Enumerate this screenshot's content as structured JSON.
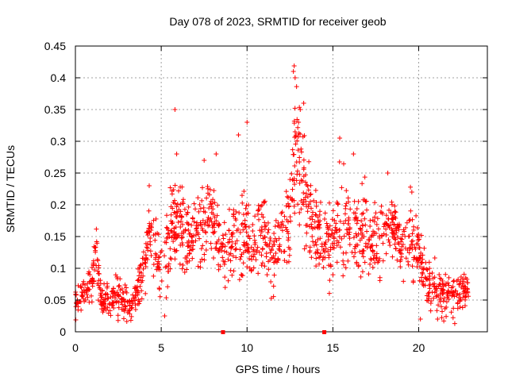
{
  "chart_data": {
    "type": "scatter",
    "title": "Day 078 of 2023, SRMTID for receiver geob",
    "xlabel": "GPS time / hours",
    "ylabel": "SRMTID / TECUs",
    "xlim": [
      0,
      24
    ],
    "ylim": [
      0,
      0.45
    ],
    "x_ticks": [
      0,
      5,
      10,
      15,
      20
    ],
    "x_tick_labels": [
      "0",
      "5",
      "10",
      "15",
      "20"
    ],
    "y_ticks": [
      0,
      0.05,
      0.1,
      0.15,
      0.2,
      0.25,
      0.3,
      0.35,
      0.4,
      0.45
    ],
    "y_tick_labels": [
      "0",
      "0.05",
      "0.1",
      "0.15",
      "0.2",
      "0.25",
      "0.3",
      "0.35",
      "0.4",
      "0.45"
    ],
    "grid": true,
    "marker": "plus",
    "color": "#ff0000",
    "data_gap_markers_x": [
      8.6,
      14.5
    ],
    "envelope": [
      [
        0.0,
        0.05,
        0.02
      ],
      [
        0.5,
        0.06,
        0.02
      ],
      [
        1.0,
        0.08,
        0.03
      ],
      [
        1.2,
        0.12,
        0.04
      ],
      [
        1.5,
        0.05,
        0.02
      ],
      [
        2.0,
        0.05,
        0.02
      ],
      [
        2.5,
        0.06,
        0.03
      ],
      [
        3.0,
        0.04,
        0.02
      ],
      [
        3.5,
        0.06,
        0.025
      ],
      [
        4.0,
        0.1,
        0.03
      ],
      [
        4.3,
        0.16,
        0.04
      ],
      [
        4.7,
        0.13,
        0.04
      ],
      [
        5.0,
        0.1,
        0.04
      ],
      [
        5.5,
        0.15,
        0.045
      ],
      [
        6.0,
        0.18,
        0.045
      ],
      [
        6.5,
        0.14,
        0.04
      ],
      [
        7.0,
        0.17,
        0.04
      ],
      [
        7.5,
        0.16,
        0.05
      ],
      [
        8.0,
        0.18,
        0.05
      ],
      [
        8.5,
        0.12,
        0.04
      ],
      [
        9.0,
        0.14,
        0.05
      ],
      [
        9.5,
        0.15,
        0.05
      ],
      [
        10.0,
        0.17,
        0.06
      ],
      [
        10.5,
        0.12,
        0.05
      ],
      [
        11.0,
        0.15,
        0.05
      ],
      [
        11.5,
        0.12,
        0.04
      ],
      [
        12.0,
        0.15,
        0.04
      ],
      [
        12.5,
        0.18,
        0.05
      ],
      [
        12.8,
        0.28,
        0.1
      ],
      [
        13.2,
        0.22,
        0.08
      ],
      [
        13.6,
        0.2,
        0.06
      ],
      [
        14.0,
        0.16,
        0.05
      ],
      [
        14.5,
        0.14,
        0.04
      ],
      [
        15.0,
        0.15,
        0.05
      ],
      [
        15.5,
        0.17,
        0.06
      ],
      [
        16.0,
        0.18,
        0.05
      ],
      [
        16.5,
        0.15,
        0.05
      ],
      [
        17.0,
        0.16,
        0.05
      ],
      [
        17.5,
        0.14,
        0.05
      ],
      [
        18.0,
        0.15,
        0.05
      ],
      [
        18.5,
        0.16,
        0.05
      ],
      [
        19.0,
        0.13,
        0.04
      ],
      [
        19.5,
        0.15,
        0.05
      ],
      [
        20.0,
        0.12,
        0.04
      ],
      [
        20.5,
        0.08,
        0.03
      ],
      [
        21.0,
        0.07,
        0.025
      ],
      [
        21.5,
        0.06,
        0.025
      ],
      [
        22.0,
        0.06,
        0.02
      ],
      [
        22.5,
        0.06,
        0.02
      ],
      [
        22.9,
        0.07,
        0.02
      ]
    ],
    "outliers": [
      [
        5.8,
        0.35
      ],
      [
        12.7,
        0.41
      ],
      [
        12.8,
        0.4
      ],
      [
        13.3,
        0.36
      ],
      [
        13.1,
        0.35
      ],
      [
        13.0,
        0.33
      ],
      [
        10.0,
        0.33
      ],
      [
        9.5,
        0.31
      ],
      [
        15.4,
        0.305
      ],
      [
        8.2,
        0.28
      ],
      [
        5.9,
        0.28
      ],
      [
        16.2,
        0.28
      ],
      [
        7.5,
        0.27
      ],
      [
        18.2,
        0.25
      ],
      [
        4.3,
        0.23
      ],
      [
        19.6,
        0.22
      ],
      [
        21.1,
        0.02
      ],
      [
        22.1,
        0.013
      ],
      [
        20.1,
        0.02
      ],
      [
        5.2,
        0.025
      ]
    ]
  }
}
